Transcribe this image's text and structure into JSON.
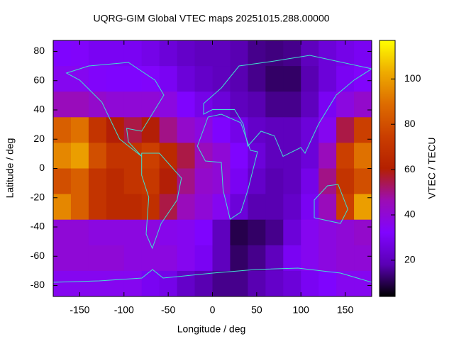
{
  "chart_data": {
    "type": "heatmap",
    "title": "UQRG-GIM Global VTEC maps 20251015.288.00000",
    "x_label": "Longitude / deg",
    "y_label": "Latitude / deg",
    "colorbar_label": "VTEC / TECU",
    "x": [
      -170,
      -150,
      -130,
      -110,
      -90,
      -70,
      -50,
      -30,
      -10,
      10,
      30,
      50,
      70,
      90,
      110,
      130,
      150,
      170
    ],
    "y": [
      78.75,
      61.25,
      43.75,
      26.25,
      8.75,
      -8.75,
      -26.25,
      -43.75,
      -61.25,
      -78.75
    ],
    "values": [
      [
        32,
        33,
        30,
        30,
        30,
        28,
        25,
        22,
        20,
        20,
        18,
        15,
        14,
        15,
        20,
        25,
        28,
        30
      ],
      [
        35,
        35,
        33,
        32,
        32,
        33,
        30,
        25,
        22,
        20,
        18,
        15,
        12,
        12,
        18,
        25,
        30,
        33
      ],
      [
        45,
        45,
        42,
        40,
        40,
        40,
        38,
        32,
        28,
        25,
        20,
        18,
        15,
        15,
        20,
        30,
        38,
        42
      ],
      [
        85,
        90,
        70,
        60,
        55,
        60,
        50,
        42,
        38,
        32,
        28,
        22,
        20,
        20,
        25,
        35,
        55,
        75
      ],
      [
        95,
        100,
        80,
        70,
        70,
        75,
        65,
        55,
        45,
        40,
        32,
        25,
        20,
        20,
        25,
        45,
        75,
        90
      ],
      [
        80,
        85,
        70,
        65,
        70,
        72,
        60,
        50,
        42,
        40,
        30,
        22,
        18,
        20,
        28,
        50,
        70,
        80
      ],
      [
        95,
        85,
        70,
        65,
        65,
        68,
        55,
        45,
        40,
        35,
        25,
        18,
        18,
        22,
        30,
        45,
        75,
        100
      ],
      [
        40,
        40,
        38,
        38,
        38,
        38,
        36,
        35,
        32,
        20,
        10,
        12,
        15,
        25,
        35,
        38,
        40,
        42
      ],
      [
        40,
        40,
        40,
        40,
        38,
        38,
        38,
        35,
        30,
        20,
        12,
        15,
        20,
        30,
        35,
        38,
        40,
        40
      ],
      [
        35,
        35,
        35,
        35,
        35,
        30,
        28,
        22,
        18,
        15,
        15,
        18,
        22,
        25,
        30,
        32,
        35,
        35
      ]
    ],
    "xlim": [
      -180,
      180
    ],
    "ylim": [
      -87.5,
      87.5
    ],
    "xticks": [
      -150,
      -100,
      -50,
      0,
      50,
      100,
      150
    ],
    "yticks": [
      -80,
      -60,
      -40,
      -20,
      0,
      20,
      40,
      60,
      80
    ],
    "clim": [
      4,
      117
    ],
    "cticks": [
      20,
      40,
      60,
      80,
      100
    ],
    "colormap": [
      "#000000",
      "#5a00b4",
      "#8004ff",
      "#9c0db4",
      "#b42000",
      "#ca3e00",
      "#dd6b00",
      "#eeab00",
      "#ffff00"
    ]
  }
}
